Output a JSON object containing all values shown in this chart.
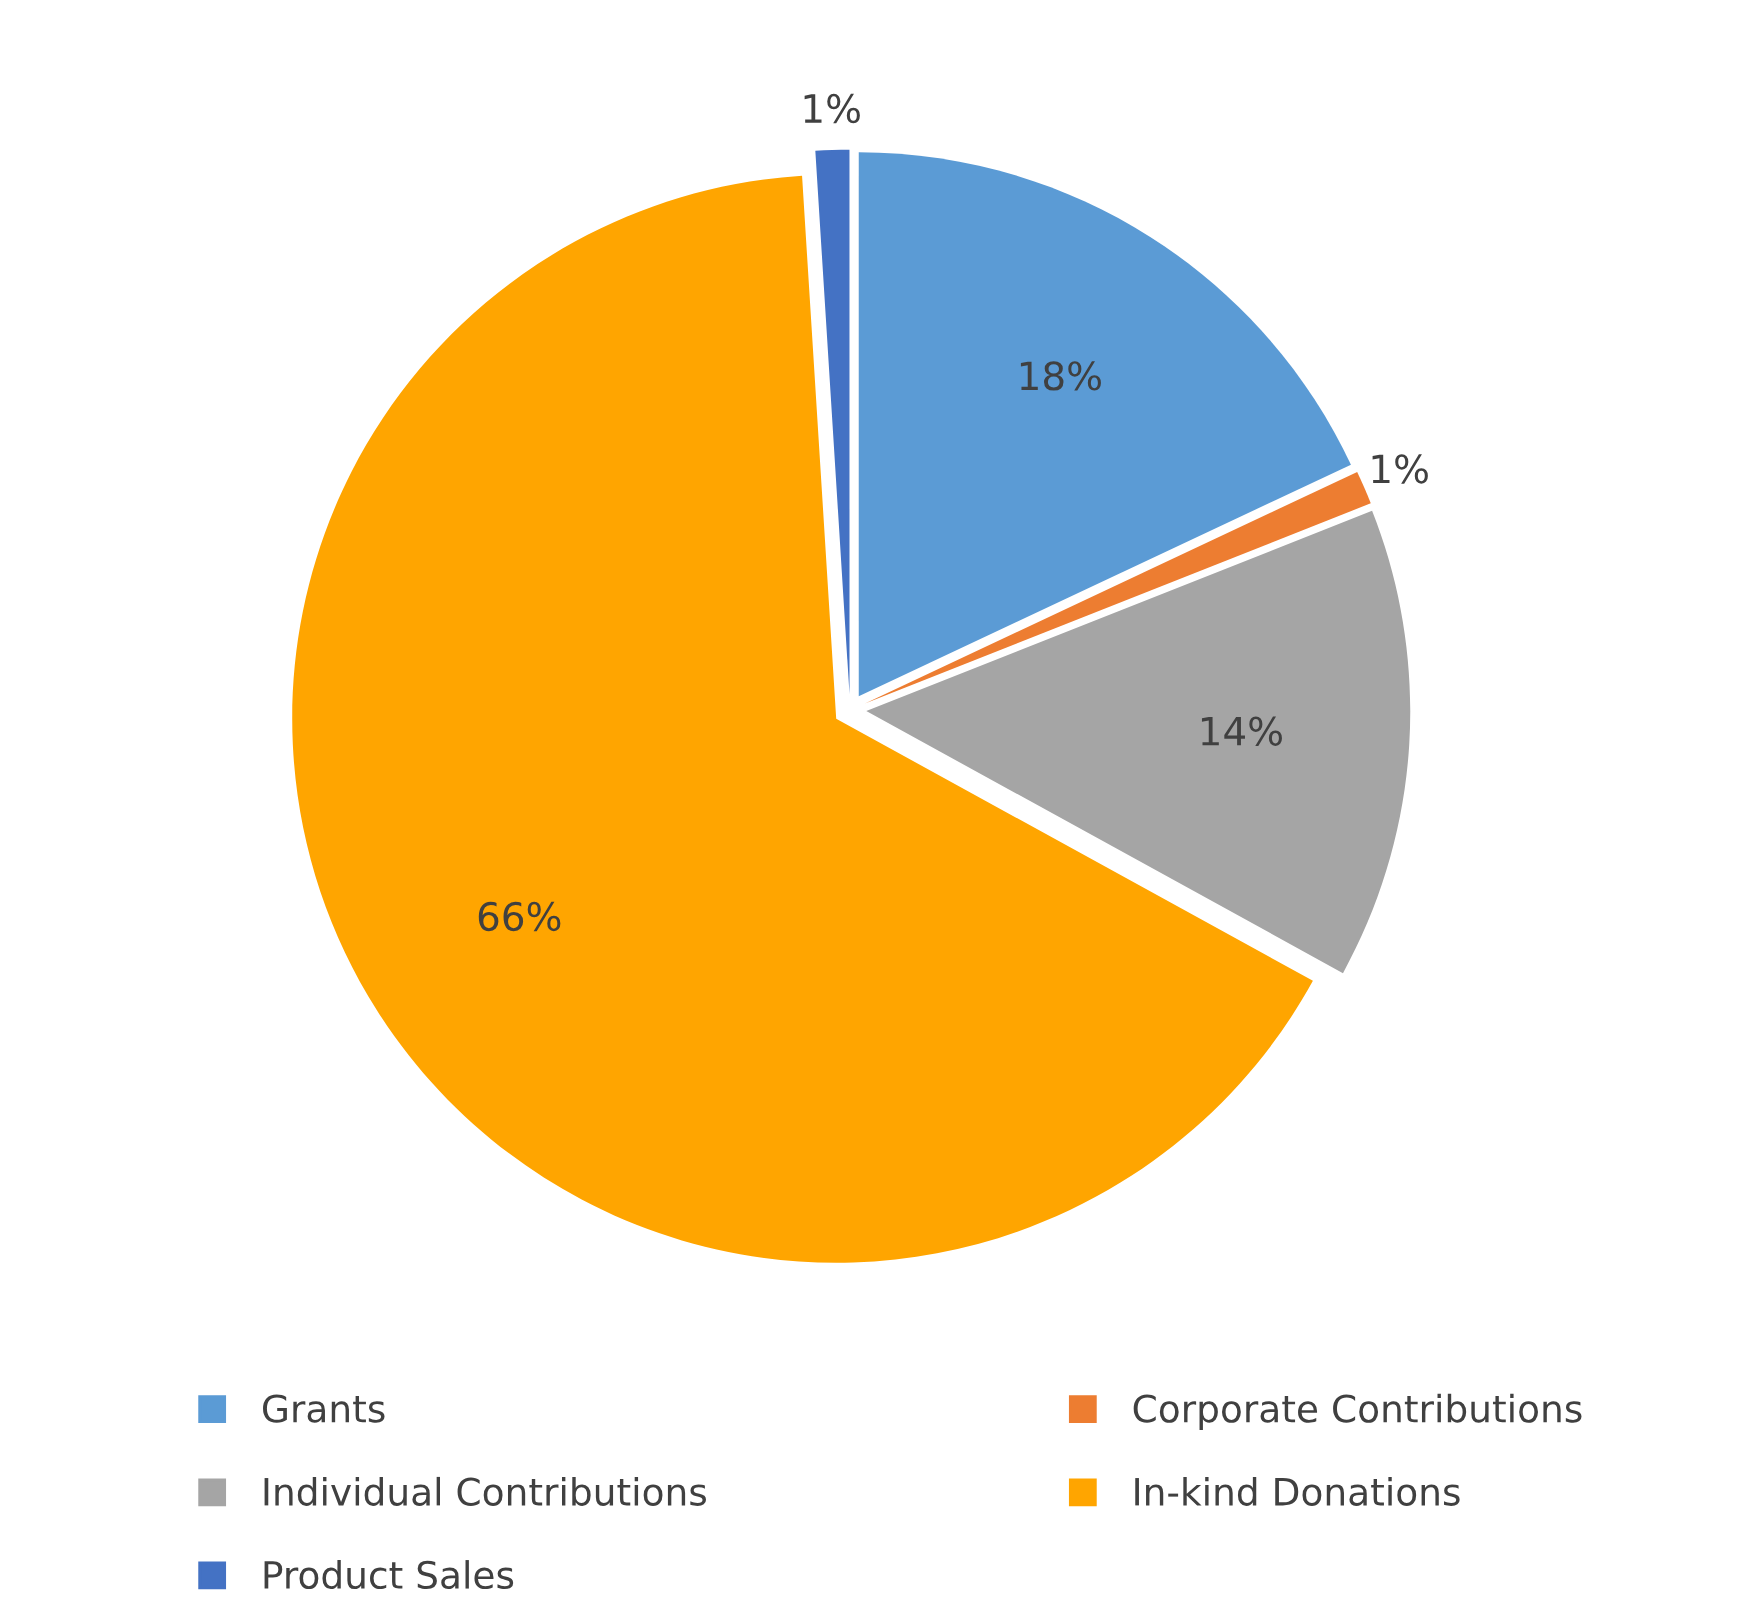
{
  "chart_data": {
    "type": "pie",
    "categories": [
      "Grants",
      "Corporate Contributions",
      "Individual Contributions",
      "In-kind Donations",
      "Product Sales"
    ],
    "values": [
      18,
      1,
      14,
      66,
      1
    ],
    "colors": [
      "#5b9bd5",
      "#ed7d31",
      "#a5a5a5",
      "#ffa500",
      "#4472c4"
    ],
    "value_labels": [
      "18%",
      "1%",
      "14%",
      "66%",
      "1%"
    ],
    "legend": "bottom"
  }
}
